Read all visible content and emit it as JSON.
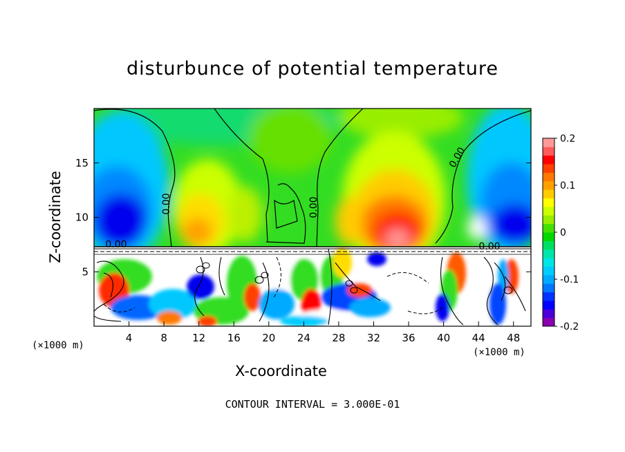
{
  "chart_data": {
    "type": "heatmap",
    "title": "disturbunce of potential temperature",
    "xlabel": "X-coordinate",
    "ylabel": "Z-coordinate",
    "x_unit": "(×1000 m)",
    "x_ticks": [
      4,
      8,
      12,
      16,
      20,
      24,
      28,
      32,
      36,
      40,
      44,
      48
    ],
    "y_ticks": [
      5,
      10,
      15
    ],
    "xlim": [
      0,
      50
    ],
    "ylim": [
      0,
      20
    ],
    "colorbar": {
      "ticks": [
        0.2,
        0.1,
        0,
        -0.1,
        -0.2
      ],
      "range": [
        -0.2,
        0.2
      ],
      "colors": [
        "#8a00b0",
        "#4b00d9",
        "#0000ff",
        "#0033ff",
        "#0077ff",
        "#00aaff",
        "#00ccff",
        "#00e5e5",
        "#00e5aa",
        "#00e060",
        "#00d800",
        "#44e000",
        "#99ee00",
        "#ccff00",
        "#ffff00",
        "#ffcc00",
        "#ffa000",
        "#ff7800",
        "#ff4000",
        "#ff0000",
        "#ff5a5a",
        "#ff9999"
      ]
    },
    "contour_labels": [
      "0.00",
      "0.00",
      "0.00",
      "0.00",
      "0.00"
    ],
    "contour_interval": "CONTOUR INTERVAL = 3.000E-01",
    "regions": [
      {
        "kind": "positive",
        "x": [
          9,
          17
        ],
        "z": [
          8,
          16
        ],
        "value": 0.05
      },
      {
        "kind": "positive",
        "x": [
          28,
          39
        ],
        "z": [
          8,
          18
        ],
        "value": 0.13
      },
      {
        "kind": "negative",
        "x": [
          0,
          8
        ],
        "z": [
          8,
          16
        ],
        "value": -0.13
      },
      {
        "kind": "negative",
        "x": [
          41,
          50
        ],
        "z": [
          8,
          14
        ],
        "value": -0.14
      }
    ]
  }
}
